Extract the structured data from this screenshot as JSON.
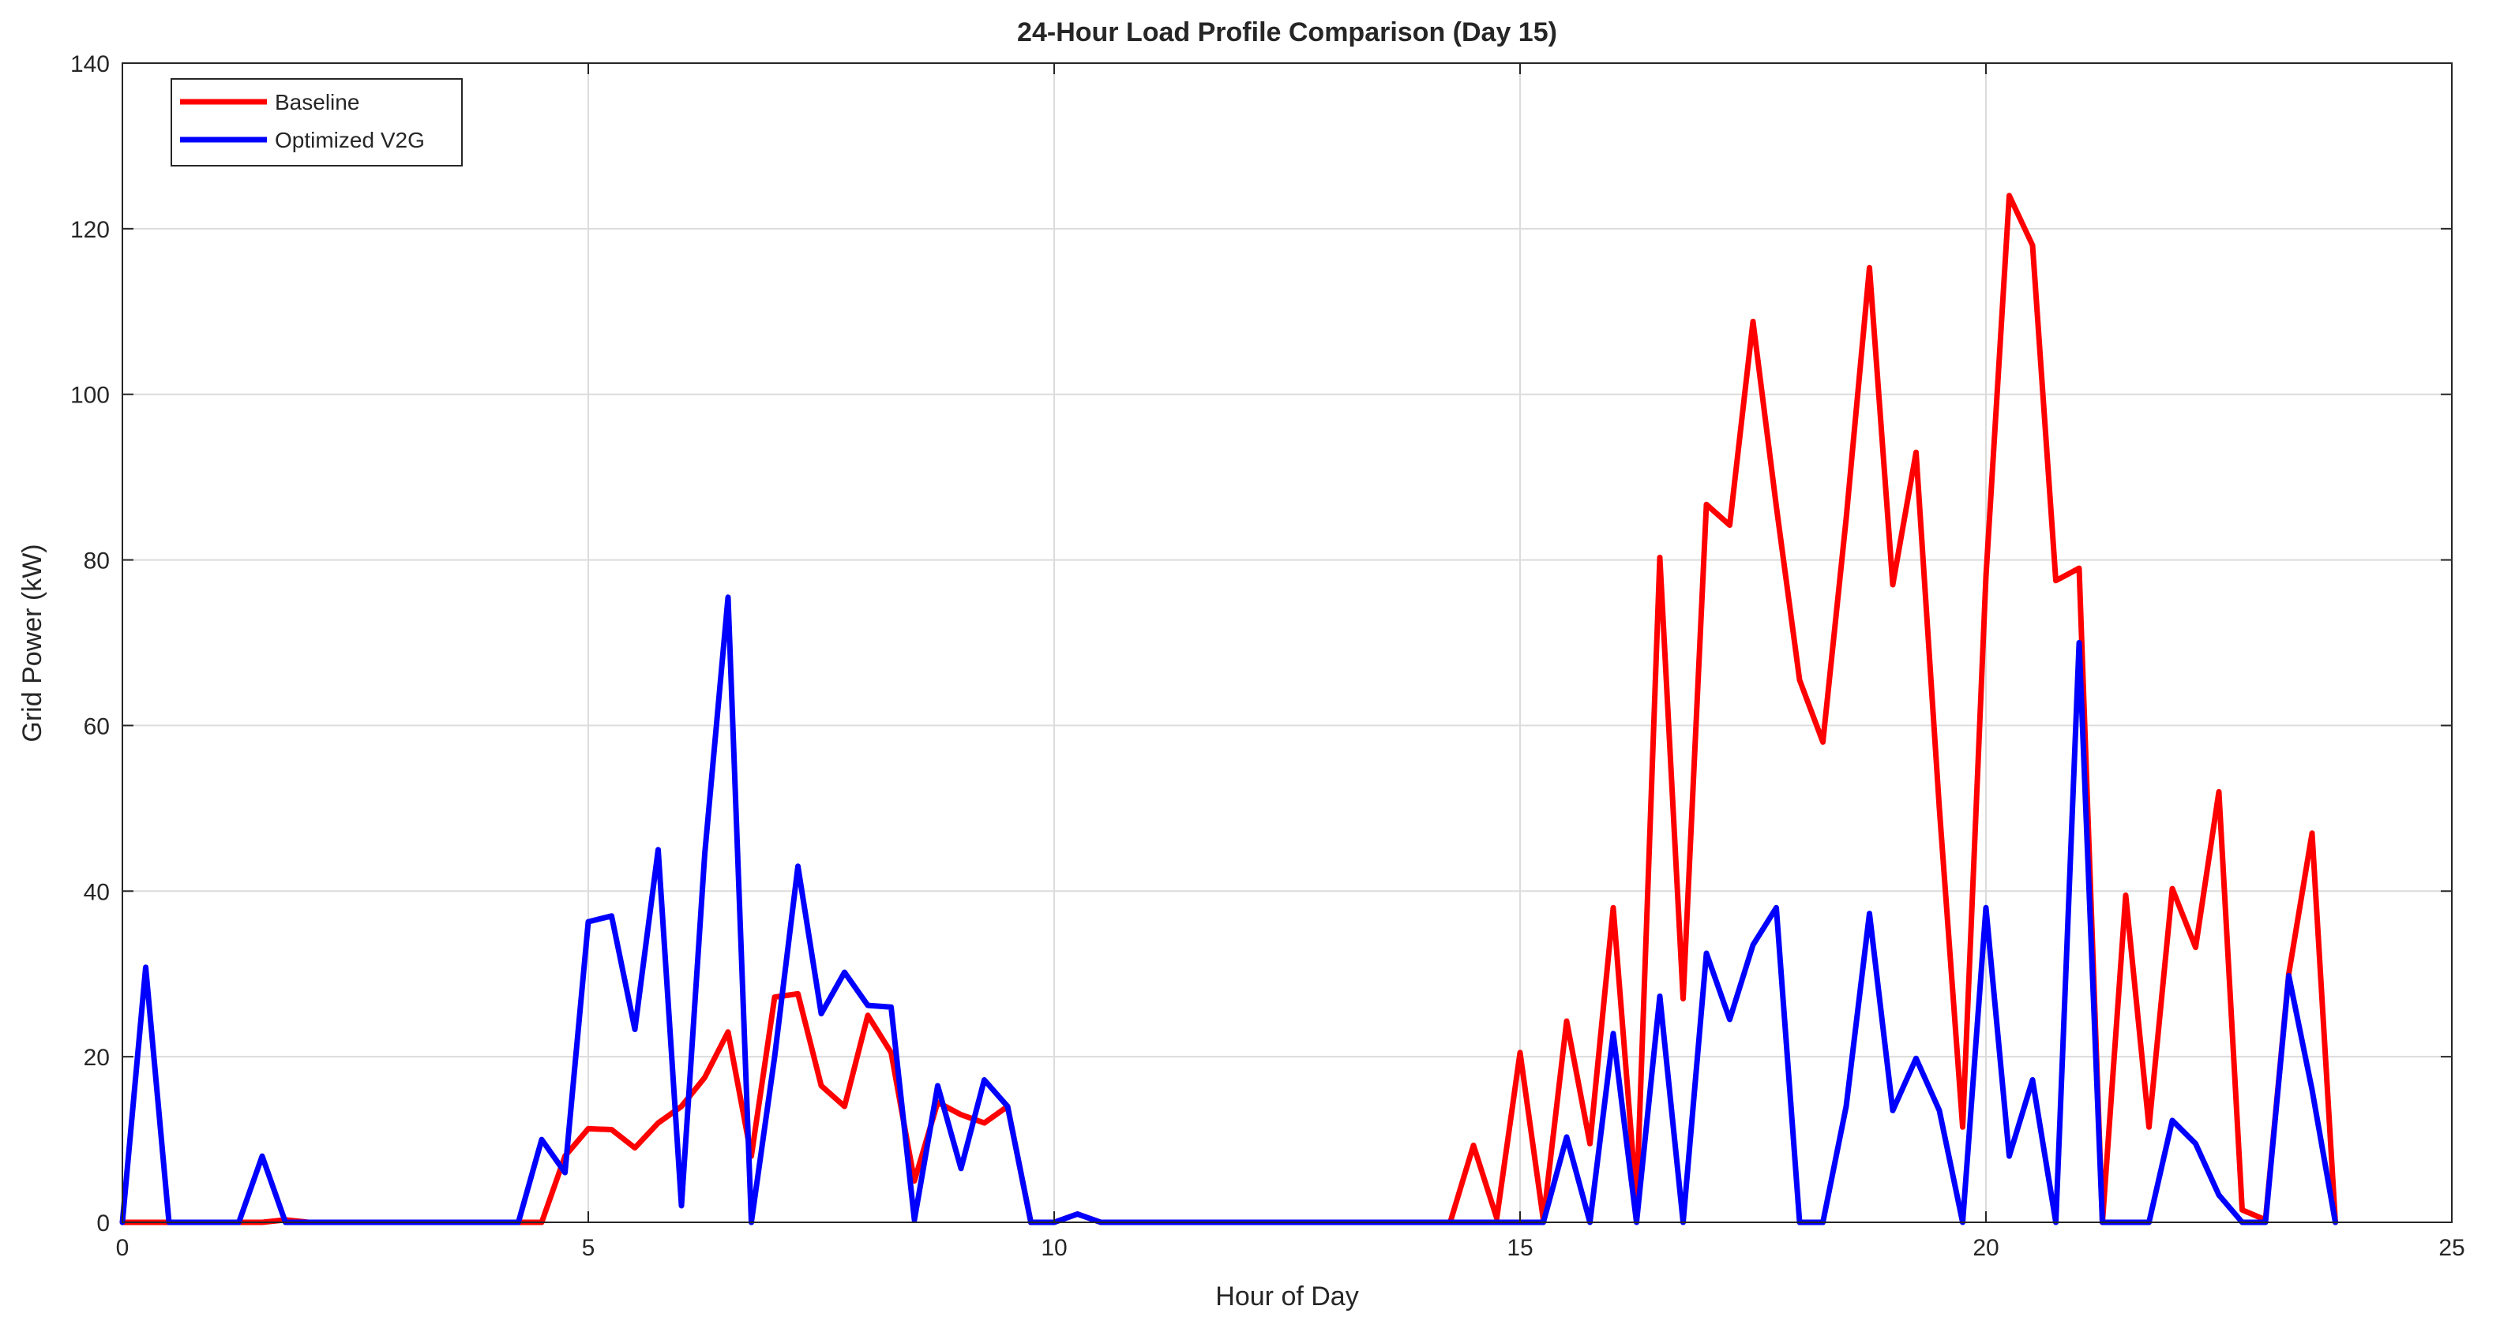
{
  "colors": {
    "baseline": "#ff0000",
    "optimized": "#0000ff",
    "grid": "#dcdcdc",
    "axis": "#262626"
  },
  "chart_data": {
    "type": "line",
    "title": "24-Hour Load Profile Comparison (Day 15)",
    "xlabel": "Hour of Day",
    "ylabel": "Grid Power (kW)",
    "xlim": [
      0,
      25
    ],
    "ylim": [
      0,
      140
    ],
    "xticks": [
      0,
      5,
      10,
      15,
      20,
      25
    ],
    "yticks": [
      0,
      20,
      40,
      60,
      80,
      100,
      120,
      140
    ],
    "xtick_labels": [
      "0",
      "5",
      "10",
      "15",
      "20",
      "25"
    ],
    "ytick_labels": [
      "0",
      "20",
      "40",
      "60",
      "80",
      "100",
      "120",
      "140"
    ],
    "grid": true,
    "legend_position": "top-left",
    "x": [
      0,
      0.25,
      0.5,
      0.75,
      1,
      1.25,
      1.5,
      1.75,
      2,
      2.25,
      2.5,
      2.75,
      3,
      3.25,
      3.5,
      3.75,
      4,
      4.25,
      4.5,
      4.75,
      5,
      5.25,
      5.5,
      5.75,
      6,
      6.25,
      6.5,
      6.75,
      7,
      7.25,
      7.5,
      7.75,
      8,
      8.25,
      8.5,
      8.75,
      9,
      9.25,
      9.5,
      9.75,
      10,
      10.25,
      10.5,
      10.75,
      11,
      11.25,
      11.5,
      11.75,
      12,
      12.25,
      12.5,
      12.75,
      13,
      13.25,
      13.5,
      13.75,
      14,
      14.25,
      14.5,
      14.75,
      15,
      15.25,
      15.5,
      15.75,
      16,
      16.25,
      16.5,
      16.75,
      17,
      17.25,
      17.5,
      17.75,
      18,
      18.25,
      18.5,
      18.75,
      19,
      19.25,
      19.5,
      19.75,
      20,
      20.25,
      20.5,
      20.75,
      21,
      21.25,
      21.5,
      21.75,
      22,
      22.25,
      22.5,
      22.75,
      23,
      23.25,
      23.5,
      23.75
    ],
    "series": [
      {
        "name": "Baseline",
        "color": "#ff0000",
        "values": [
          0,
          0,
          0,
          0,
          0,
          0,
          0,
          0.3,
          0,
          0,
          0,
          0,
          0,
          0,
          0,
          0,
          0,
          0,
          0,
          8,
          11.3,
          11.2,
          9,
          12,
          14,
          17.5,
          23,
          8,
          27.2,
          27.6,
          16.5,
          14,
          25,
          20.5,
          5,
          14.5,
          13,
          12,
          14,
          0,
          0,
          1,
          0,
          0,
          0,
          0,
          0,
          0,
          0,
          0,
          0,
          0,
          0,
          0,
          0,
          0,
          0,
          0,
          9.3,
          0.5,
          20.5,
          0.3,
          24.3,
          9.5,
          38,
          2.5,
          80.3,
          27,
          86.7,
          84.2,
          108.8,
          86.5,
          65.5,
          58,
          85,
          115.3,
          77,
          93,
          50,
          11.5,
          78,
          124,
          118,
          77.5,
          79,
          0,
          39.5,
          11.5,
          40.3,
          33.2,
          52,
          1.5,
          0.3,
          30,
          47,
          0
        ]
      },
      {
        "name": "Optimized V2G",
        "color": "#0000ff",
        "values": [
          0,
          30.8,
          0,
          0,
          0,
          0,
          8,
          0,
          0,
          0,
          0,
          0,
          0,
          0,
          0,
          0,
          0,
          0,
          10,
          6,
          36.3,
          37,
          23.3,
          45,
          2,
          44.5,
          75.5,
          0,
          20,
          43,
          25.2,
          30.2,
          26.2,
          26,
          0.3,
          16.5,
          6.5,
          17.2,
          14,
          0,
          0,
          1,
          0,
          0,
          0,
          0,
          0,
          0,
          0,
          0,
          0,
          0,
          0,
          0,
          0,
          0,
          0,
          0,
          0,
          0,
          0,
          0,
          10.3,
          0,
          22.8,
          0,
          27.3,
          0,
          32.5,
          24.5,
          33.5,
          38,
          0,
          0,
          14,
          37.3,
          13.5,
          19.8,
          13.5,
          0,
          38,
          8,
          17.2,
          0,
          70,
          0,
          0,
          0,
          12.3,
          9.5,
          3.3,
          0,
          0,
          29.8,
          16,
          0
        ]
      }
    ]
  }
}
